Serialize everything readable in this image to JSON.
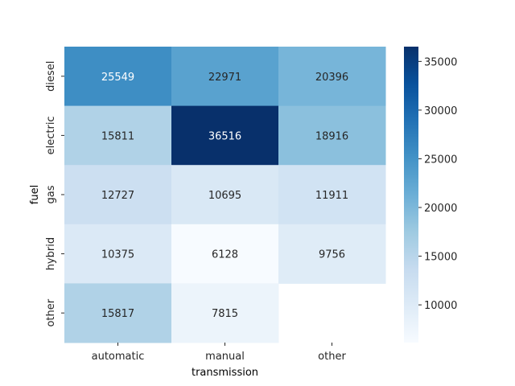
{
  "chart_data": {
    "type": "heatmap",
    "title": "",
    "xlabel": "transmission",
    "ylabel": "fuel",
    "x_categories": [
      "automatic",
      "manual",
      "other"
    ],
    "y_categories": [
      "diesel",
      "electric",
      "gas",
      "hybrid",
      "other"
    ],
    "values": [
      [
        25549,
        22971,
        20396
      ],
      [
        15811,
        36516,
        18916
      ],
      [
        12727,
        10695,
        11911
      ],
      [
        10375,
        6128,
        9756
      ],
      [
        15817,
        7815,
        null
      ]
    ],
    "colormap": "Blues",
    "vmin": 6128,
    "vmax": 36516,
    "colorbar_ticks": [
      10000,
      15000,
      20000,
      25000,
      30000,
      35000
    ],
    "colorbar_tick_labels": [
      "10000",
      "15000",
      "20000",
      "25000",
      "30000",
      "35000"
    ],
    "annotate": true
  }
}
